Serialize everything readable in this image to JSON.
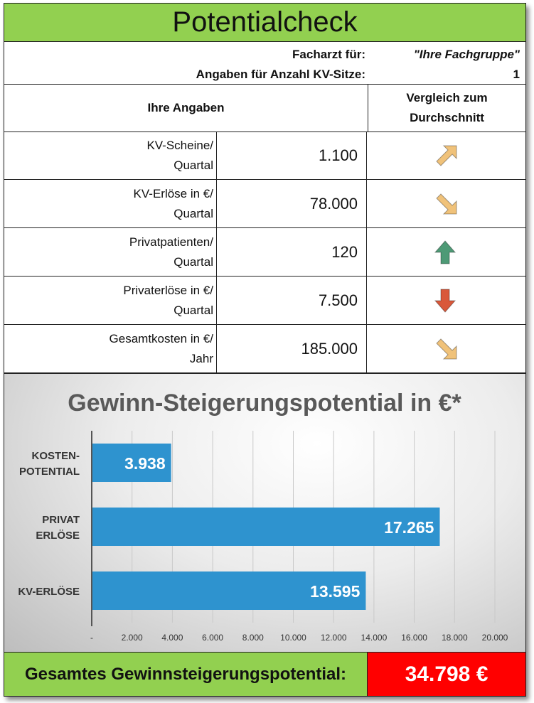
{
  "title": "Potentialcheck",
  "info": {
    "facharzt_label": "Facharzt für:",
    "facharzt_value": "\"Ihre Fachgruppe\"",
    "sitze_label": "Angaben für Anzahl KV-Sitze:",
    "sitze_value": "1"
  },
  "table": {
    "header_left": "Ihre Angaben",
    "header_right_line1": "Vergleich zum",
    "header_right_line2": "Durchschnitt",
    "rows": [
      {
        "label1": "KV-Scheine/",
        "label2": "Quartal",
        "value": "1.100",
        "arrow": "arrow-up-right-icon",
        "color": "#f0c27a"
      },
      {
        "label1": "KV-Erlöse in €/",
        "label2": "Quartal",
        "value": "78.000",
        "arrow": "arrow-down-right-icon",
        "color": "#f0c27a"
      },
      {
        "label1": "Privatpatienten/",
        "label2": "Quartal",
        "value": "120",
        "arrow": "arrow-up-icon",
        "color": "#4e9a76"
      },
      {
        "label1": "Privaterlöse in €/",
        "label2": "Quartal",
        "value": "7.500",
        "arrow": "arrow-down-icon",
        "color": "#d9583a"
      },
      {
        "label1": "Gesamtkosten in €/",
        "label2": "Jahr",
        "value": "185.000",
        "arrow": "arrow-down-right-icon",
        "color": "#f0c27a"
      }
    ]
  },
  "chart_data": {
    "type": "bar",
    "orientation": "horizontal",
    "title": "Gewinn-Steigerungspotential in €*",
    "categories": [
      [
        "KOSTEN-",
        "POTENTIAL"
      ],
      [
        "PRIVAT",
        "ERLÖSE"
      ],
      [
        "KV-ERLÖSE"
      ]
    ],
    "values": [
      3938,
      17265,
      13595
    ],
    "value_labels": [
      "3.938",
      "17.265",
      "13.595"
    ],
    "xlim": [
      0,
      20000
    ],
    "xticks": [
      0,
      2000,
      4000,
      6000,
      8000,
      10000,
      12000,
      14000,
      16000,
      18000,
      20000
    ],
    "xtick_labels": [
      "-",
      "2.000",
      "4.000",
      "6.000",
      "8.000",
      "10.000",
      "12.000",
      "14.000",
      "16.000",
      "18.000",
      "20.000"
    ],
    "bar_color": "#2e93cf",
    "grid": true,
    "legend": "none"
  },
  "footer": {
    "label": "Gesamtes Gewinnsteigerungspotential:",
    "value": "34.798 €"
  }
}
